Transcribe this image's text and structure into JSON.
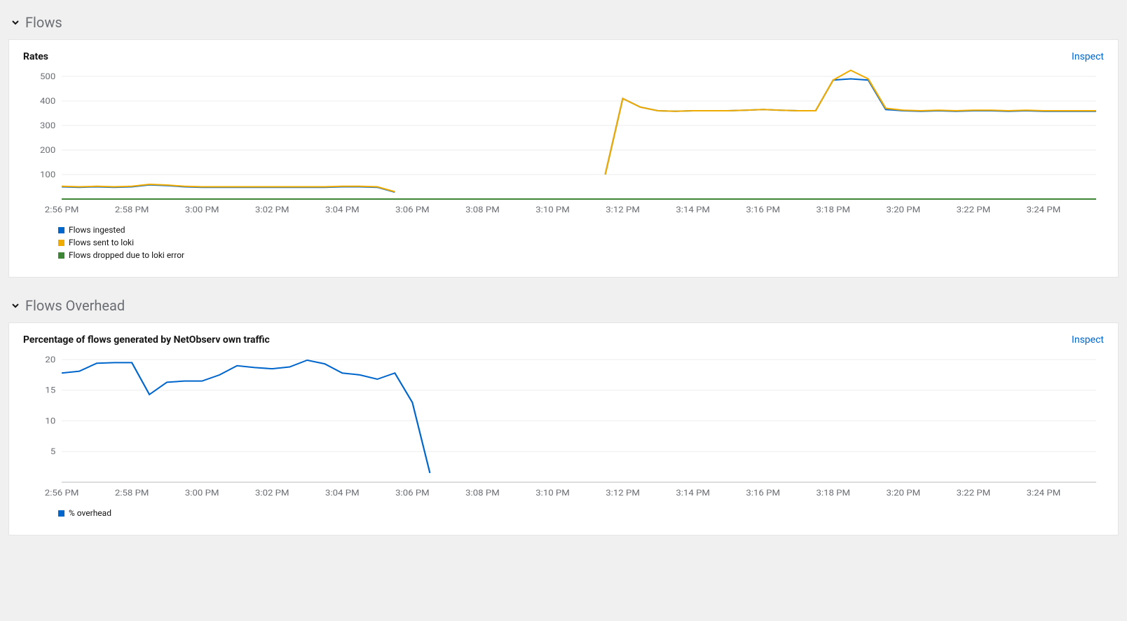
{
  "sections": {
    "flows": {
      "title": "Flows",
      "panel": {
        "title": "Rates",
        "inspect_label": "Inspect",
        "chart": {
          "type": "line",
          "background_color": "#ffffff",
          "grid_color": "#ededed",
          "axis_color": "#b8bbbe",
          "label_color": "#6a6e73",
          "label_fontsize": 12,
          "y": {
            "min": 0,
            "max": 500,
            "step": 100
          },
          "x_labels": [
            "2:56 PM",
            "2:58 PM",
            "3:00 PM",
            "3:02 PM",
            "3:04 PM",
            "3:06 PM",
            "3:08 PM",
            "3:10 PM",
            "3:12 PM",
            "3:14 PM",
            "3:16 PM",
            "3:18 PM",
            "3:20 PM",
            "3:22 PM",
            "3:24 PM"
          ],
          "x_count": 60,
          "series": [
            {
              "name": "Flows ingested",
              "color": "#0066cc",
              "data": [
                50,
                48,
                50,
                48,
                50,
                58,
                55,
                50,
                48,
                48,
                48,
                48,
                48,
                48,
                48,
                48,
                50,
                50,
                48,
                28,
                null,
                null,
                null,
                null,
                null,
                null,
                null,
                null,
                null,
                null,
                null,
                100,
                410,
                375,
                360,
                358,
                360,
                360,
                360,
                362,
                365,
                362,
                360,
                360,
                485,
                490,
                485,
                365,
                360,
                358,
                360,
                358,
                360,
                360,
                358,
                360,
                358,
                358,
                358,
                358
              ]
            },
            {
              "name": "Flows sent to loki",
              "color": "#f0ab00",
              "data": [
                52,
                50,
                52,
                50,
                52,
                60,
                57,
                52,
                50,
                50,
                50,
                50,
                50,
                50,
                50,
                50,
                52,
                52,
                50,
                30,
                null,
                null,
                null,
                null,
                null,
                null,
                null,
                null,
                null,
                null,
                null,
                100,
                410,
                375,
                360,
                358,
                360,
                360,
                360,
                362,
                365,
                362,
                360,
                360,
                485,
                525,
                490,
                370,
                362,
                360,
                362,
                360,
                362,
                362,
                360,
                362,
                360,
                360,
                360,
                360
              ]
            },
            {
              "name": "Flows dropped due to loki error",
              "color": "#3e8635",
              "data": [
                0,
                0,
                0,
                0,
                0,
                0,
                0,
                0,
                0,
                0,
                0,
                0,
                0,
                0,
                0,
                0,
                0,
                0,
                0,
                0,
                0,
                0,
                0,
                0,
                0,
                0,
                0,
                0,
                0,
                0,
                0,
                0,
                0,
                0,
                0,
                0,
                0,
                0,
                0,
                0,
                0,
                0,
                0,
                0,
                0,
                0,
                0,
                0,
                0,
                0,
                0,
                0,
                0,
                0,
                0,
                0,
                0,
                0,
                0,
                0
              ]
            }
          ]
        }
      }
    },
    "flows_overhead": {
      "title": "Flows Overhead",
      "panel": {
        "title": "Percentage of flows generated by NetObserv own traffic",
        "inspect_label": "Inspect",
        "chart": {
          "type": "line",
          "background_color": "#ffffff",
          "grid_color": "#ededed",
          "axis_color": "#b8bbbe",
          "label_color": "#6a6e73",
          "label_fontsize": 12,
          "y": {
            "min": 0,
            "max": 20,
            "step": 5
          },
          "x_labels": [
            "2:56 PM",
            "2:58 PM",
            "3:00 PM",
            "3:02 PM",
            "3:04 PM",
            "3:06 PM",
            "3:08 PM",
            "3:10 PM",
            "3:12 PM",
            "3:14 PM",
            "3:16 PM",
            "3:18 PM",
            "3:20 PM",
            "3:22 PM",
            "3:24 PM"
          ],
          "x_count": 60,
          "series": [
            {
              "name": "% overhead",
              "color": "#0066cc",
              "data": [
                17.8,
                18.1,
                19.4,
                19.5,
                19.5,
                14.3,
                16.3,
                16.5,
                16.5,
                17.5,
                19,
                18.7,
                18.5,
                18.8,
                19.9,
                19.3,
                17.8,
                17.5,
                16.8,
                17.8,
                13,
                1.5,
                null,
                null,
                null,
                null,
                null,
                null,
                null,
                null,
                null,
                null,
                null,
                null,
                null,
                null,
                null,
                null,
                null,
                null,
                null,
                null,
                null,
                null,
                null,
                null,
                null,
                null,
                null,
                null,
                null,
                null,
                null,
                null,
                null,
                null,
                null,
                null,
                null,
                null
              ]
            }
          ]
        }
      }
    }
  }
}
